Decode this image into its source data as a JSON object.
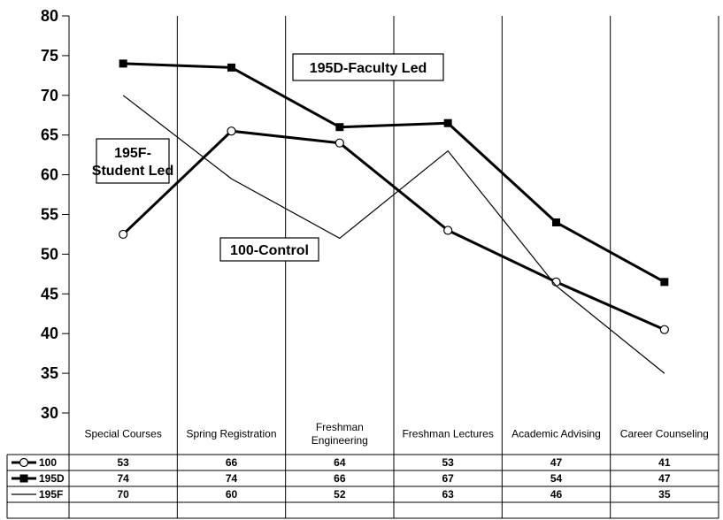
{
  "chart_data": {
    "type": "line",
    "categories": [
      "Special Courses",
      "Spring Registration",
      "Freshman Engineering",
      "Freshman Lectures",
      "Academic Advising",
      "Career Counseling"
    ],
    "category_lines": [
      [
        "Special Courses"
      ],
      [
        "Spring Registration"
      ],
      [
        "Freshman",
        "Engineering"
      ],
      [
        "Freshman Lectures"
      ],
      [
        "Academic Advising"
      ],
      [
        "Career Counseling"
      ]
    ],
    "ylim": [
      30,
      80
    ],
    "yticks": [
      "30",
      "35",
      "40",
      "45",
      "50",
      "55",
      "60",
      "65",
      "70",
      "75",
      "80"
    ],
    "grid": "vertical lines at category boundaries",
    "legend": "data table below plot",
    "series": [
      {
        "name": "100",
        "marker": "open-circle",
        "line": "thick",
        "values": [
          52.5,
          65.5,
          64,
          53,
          46.5,
          40.5
        ],
        "table_values": [
          "53",
          "66",
          "64",
          "53",
          "47",
          "41"
        ]
      },
      {
        "name": "195D",
        "marker": "filled-square",
        "line": "thick",
        "values": [
          74,
          73.5,
          66,
          66.5,
          54,
          46.5
        ],
        "table_values": [
          "74",
          "74",
          "66",
          "67",
          "54",
          "47"
        ]
      },
      {
        "name": "195F",
        "marker": "none",
        "line": "thin",
        "values": [
          70,
          59.5,
          52,
          63,
          46,
          35
        ],
        "table_values": [
          "70",
          "60",
          "52",
          "63",
          "46",
          "35"
        ]
      }
    ],
    "annotations": [
      {
        "lines": [
          "195D-Faculty Led"
        ]
      },
      {
        "lines": [
          "195F-",
          "Student Led"
        ]
      },
      {
        "lines": [
          "100-Control"
        ]
      }
    ],
    "colors": {
      "line": "#000000",
      "background": "#ffffff"
    }
  }
}
